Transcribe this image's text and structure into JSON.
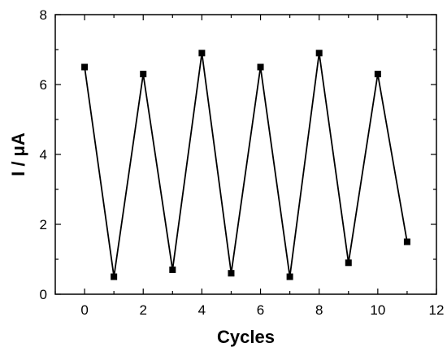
{
  "chart_data": {
    "type": "line",
    "title": "",
    "xlabel": "Cycles",
    "ylabel": "I / μA",
    "xlim": [
      -1,
      12
    ],
    "ylim": [
      0,
      8
    ],
    "xticks": [
      0,
      2,
      4,
      6,
      8,
      10,
      12
    ],
    "yticks": [
      0,
      2,
      4,
      6,
      8
    ],
    "grid": false,
    "legend": "none",
    "series": [
      {
        "marker": "square",
        "color": "#000000",
        "x": [
          0,
          1,
          2,
          3,
          4,
          5,
          6,
          7,
          8,
          9,
          10,
          11
        ],
        "y": [
          6.5,
          0.5,
          6.3,
          0.7,
          6.9,
          0.6,
          6.5,
          0.5,
          6.9,
          0.9,
          6.3,
          1.5
        ]
      }
    ]
  }
}
